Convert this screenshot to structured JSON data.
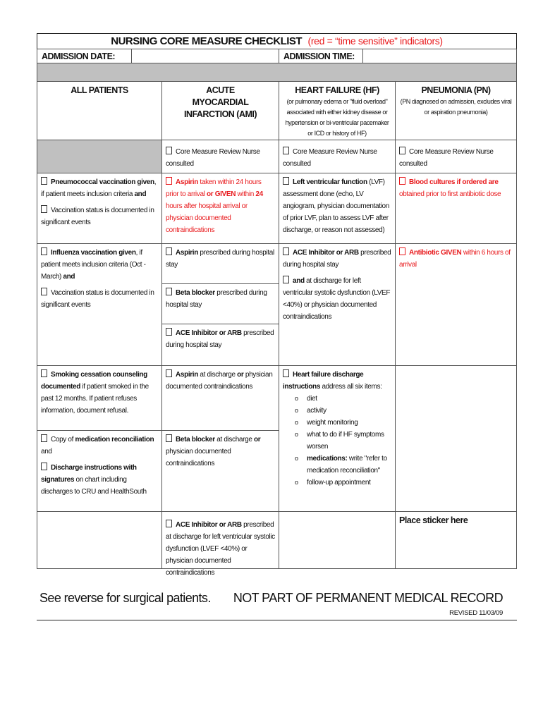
{
  "header": {
    "title": "NURSING CORE MEASURE CHECKLIST",
    "title_note": "(red = “time sensitive” indicators)",
    "admission_date_label": "ADMISSION DATE:",
    "admission_date_value": "",
    "admission_time_label": "ADMISSION TIME:",
    "admission_time_value": ""
  },
  "columns": [
    {
      "title": "ALL PATIENTS",
      "subtitle": ""
    },
    {
      "title": "ACUTE MYOCARDIAL INFARCTION (AMI)",
      "subtitle": ""
    },
    {
      "title": "HEART FAILURE (HF)",
      "subtitle": "(or pulmonary edema or \"fluid overload\" associated with either kidney disease or hypertension or bi-ventricular pacemaker or ICD or history of HF)"
    },
    {
      "title": "PNEUMONIA (PN)",
      "subtitle": "(PN diagnosed on admission, excludes viral or aspiration pneumonia)"
    }
  ],
  "cells": {
    "review_ami": [
      [
        {
          "t": "Core Measure Review Nurse consulted",
          "cb": 1
        }
      ]
    ],
    "review_hf": [
      [
        {
          "t": "Core Measure Review Nurse consulted",
          "cb": 1
        }
      ]
    ],
    "review_pn": [
      [
        {
          "t": "Core Measure Review Nurse consulted",
          "cb": 1
        }
      ]
    ],
    "r1_all": [
      [
        {
          "cb": 1
        },
        {
          "t": "Pneumococcal vaccination given",
          "b": 1
        },
        {
          "t": ", if patient meets inclusion criteria "
        },
        {
          "t": "and",
          "b": 1
        }
      ],
      [
        {
          "cb": 1
        },
        {
          "t": "Vaccination status is documented in significant events"
        }
      ]
    ],
    "r1_ami": [
      [
        {
          "cb": 1,
          "r": 1
        },
        {
          "t": "Aspirin",
          "b": 1,
          "r": 1
        },
        {
          "t": " taken within 24 hours prior to arrival ",
          "r": 1
        },
        {
          "t": "or GIVEN",
          "b": 1,
          "r": 1
        },
        {
          "t": " within ",
          "r": 1
        },
        {
          "t": "24",
          "b": 1,
          "r": 1
        },
        {
          "t": " hours after hospital arrival or physician documented contraindications",
          "r": 1
        }
      ]
    ],
    "r1_hf": [
      [
        {
          "cb": 1
        },
        {
          "t": "Left ventricular function",
          "b": 1
        },
        {
          "t": " (LVF) assessment done (echo, LV angiogram, physician documentation of prior LVF, plan to assess LVF after discharge, or reason not assessed)"
        }
      ]
    ],
    "r1_pn": [
      [
        {
          "cb": 1,
          "r": 1
        },
        {
          "t": "Blood cultures if ordered are",
          "b": 1,
          "r": 1
        },
        {
          "t": " obtained prior to first antibiotic dose",
          "r": 1
        }
      ]
    ],
    "r2_all": [
      [
        {
          "cb": 1
        },
        {
          "t": "Influenza vaccination given",
          "b": 1
        },
        {
          "t": ", if patient meets inclusion criteria (Oct - March) "
        },
        {
          "t": "and",
          "b": 1
        }
      ],
      [
        {
          "cb": 1
        },
        {
          "t": "Vaccination status is documented in significant events"
        }
      ]
    ],
    "r2_ami_a": [
      [
        {
          "cb": 1
        },
        {
          "t": "Aspirin",
          "b": 1
        },
        {
          "t": " prescribed during hospital stay"
        }
      ]
    ],
    "r2_ami_b": [
      [
        {
          "cb": 1
        },
        {
          "t": "Beta blocker",
          "b": 1
        },
        {
          "t": " prescribed during hospital stay"
        }
      ]
    ],
    "r2_ami_c": [
      [
        {
          "cb": 1
        },
        {
          "t": "ACE Inhibitor or ARB",
          "b": 1
        },
        {
          "t": " prescribed during hospital stay"
        }
      ]
    ],
    "r2_hf": [
      [
        {
          "cb": 1
        },
        {
          "t": "ACE Inhibitor or ARB",
          "b": 1
        },
        {
          "t": " prescribed during hospital stay"
        }
      ],
      [
        {
          "cb": 1
        },
        {
          "t": "and",
          "b": 1
        },
        {
          "t": " at discharge for left ventricular systolic dysfunction (LVEF <40%) or physician documented contraindications"
        }
      ]
    ],
    "r2_pn": [
      [
        {
          "cb": 1,
          "r": 1
        },
        {
          "t": "Antibiotic GIVEN",
          "b": 1,
          "r": 1
        },
        {
          "t": " within 6 hours of arrival",
          "r": 1
        }
      ]
    ],
    "r3_all": [
      [
        {
          "cb": 1
        },
        {
          "t": "Smoking cessation counseling documented",
          "b": 1
        },
        {
          "t": " if patient smoked in the past 12 months.  If patient refuses information, document refusal."
        }
      ]
    ],
    "r3_ami": [
      [
        {
          "cb": 1
        },
        {
          "t": "Aspirin",
          "b": 1
        },
        {
          "t": " at discharge "
        },
        {
          "t": "or",
          "b": 1
        },
        {
          "t": " physician documented contraindications"
        }
      ]
    ],
    "r3_hf": [
      [
        {
          "cb": 1
        },
        {
          "t": "Heart failure discharge instructions",
          "b": 1
        },
        {
          "t": " address all six items:"
        }
      ]
    ],
    "r4_all": [
      [
        {
          "cb": 1
        },
        {
          "t": "Copy of "
        },
        {
          "t": "medication reconciliation",
          "b": 1
        },
        {
          "t": " and"
        }
      ],
      [
        {
          "cb": 1
        },
        {
          "t": "Discharge instructions with signatures",
          "b": 1
        },
        {
          "t": " on chart including discharges to CRU and HealthSouth"
        }
      ]
    ],
    "r4_ami": [
      [
        {
          "cb": 1
        },
        {
          "t": "Beta blocker",
          "b": 1
        },
        {
          "t": " at discharge "
        },
        {
          "t": "or",
          "b": 1
        },
        {
          "t": " physician documented contraindications"
        }
      ]
    ],
    "r5_ami": [
      [
        {
          "cb": 1
        },
        {
          "t": "ACE Inhibitor or ARB",
          "b": 1
        },
        {
          "t": " prescribed at discharge for left ventricular systolic dysfunction (LVEF <40%)  or physician documented contraindications"
        }
      ]
    ]
  },
  "hf_items": [
    [
      {
        "t": "diet"
      }
    ],
    [
      {
        "t": "activity"
      }
    ],
    [
      {
        "t": "weight monitoring"
      }
    ],
    [
      {
        "t": "what to do if HF symptoms worsen"
      }
    ],
    [
      {
        "t": "medications:",
        "b": 1
      },
      {
        "t": " write \"refer to medication  reconciliation\""
      }
    ],
    [
      {
        "t": "follow-up appointment"
      }
    ]
  ],
  "sticker_label": "Place sticker here",
  "footer": {
    "surgical_note": "See reverse for surgical patients.",
    "record_note": "NOT PART OF PERMANENT MEDICAL RECORD",
    "revised": "REVISED 11/03/09"
  },
  "colors": {
    "time_sensitive": "#e8191c",
    "shaded": "#c0c0c0"
  }
}
